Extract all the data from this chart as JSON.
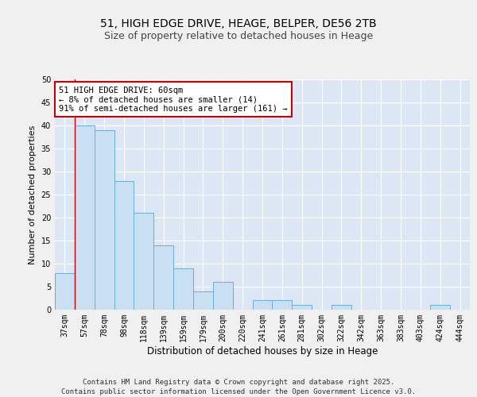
{
  "title1": "51, HIGH EDGE DRIVE, HEAGE, BELPER, DE56 2TB",
  "title2": "Size of property relative to detached houses in Heage",
  "xlabel": "Distribution of detached houses by size in Heage",
  "ylabel": "Number of detached properties",
  "categories": [
    "37sqm",
    "57sqm",
    "78sqm",
    "98sqm",
    "118sqm",
    "139sqm",
    "159sqm",
    "179sqm",
    "200sqm",
    "220sqm",
    "241sqm",
    "261sqm",
    "281sqm",
    "302sqm",
    "322sqm",
    "342sqm",
    "363sqm",
    "383sqm",
    "403sqm",
    "424sqm",
    "444sqm"
  ],
  "values": [
    8,
    40,
    39,
    28,
    21,
    14,
    9,
    4,
    6,
    0,
    2,
    2,
    1,
    0,
    1,
    0,
    0,
    0,
    0,
    1,
    0
  ],
  "bar_color": "#c9dff2",
  "bar_edge_color": "#6aaed6",
  "background_color": "#dce6f5",
  "grid_color": "#ffffff",
  "annotation_box_text": "51 HIGH EDGE DRIVE: 60sqm\n← 8% of detached houses are smaller (14)\n91% of semi-detached houses are larger (161) →",
  "annotation_box_color": "#ffffff",
  "annotation_box_edge_color": "#cc0000",
  "vline_color": "#cc0000",
  "ylim": [
    0,
    50
  ],
  "yticks": [
    0,
    5,
    10,
    15,
    20,
    25,
    30,
    35,
    40,
    45,
    50
  ],
  "footer_text": "Contains HM Land Registry data © Crown copyright and database right 2025.\nContains public sector information licensed under the Open Government Licence v3.0.",
  "fig_background": "#f0f0f0",
  "title1_fontsize": 10,
  "title2_fontsize": 9,
  "xlabel_fontsize": 8.5,
  "ylabel_fontsize": 8,
  "tick_fontsize": 7,
  "annotation_fontsize": 7.5,
  "footer_fontsize": 6.5
}
